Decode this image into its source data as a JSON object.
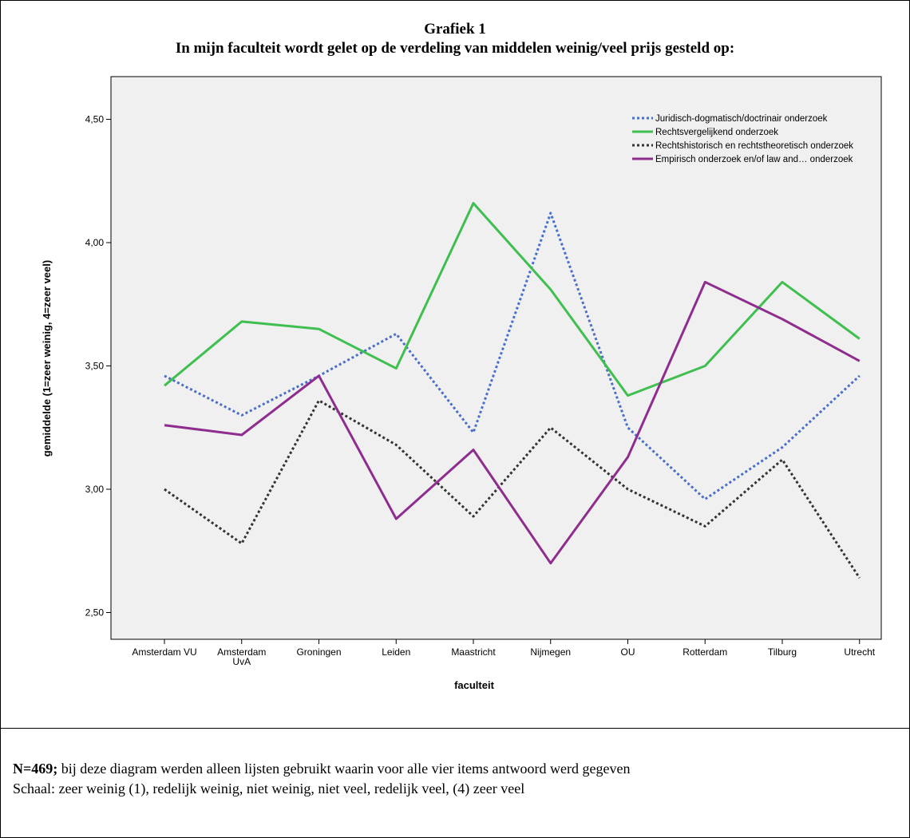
{
  "title": "Grafiek 1",
  "subtitle": "In mijn faculteit wordt gelet op de verdeling van middelen weinig/veel prijs gesteld op:",
  "note": {
    "n_label": "N=469;",
    "line1_rest": " bij deze diagram werden alleen lijsten gebruikt waarin voor alle vier items antwoord werd gegeven",
    "line2": "Schaal: zeer weinig (1), redelijk weinig, niet weinig, niet veel, redelijk veel, (4) zeer veel"
  },
  "chart_data": {
    "type": "line",
    "xlabel": "faculteit",
    "ylabel": "gemiddelde (1=zeer weinig, 4=zeer veel)",
    "ylim": [
      2.4,
      4.65
    ],
    "yticks": [
      2.5,
      3.0,
      3.5,
      4.0,
      4.5
    ],
    "ytick_labels": [
      "2,50",
      "3,00",
      "3,50",
      "4,00",
      "4,50"
    ],
    "categories": [
      "Amsterdam VU",
      "Amsterdam UvA",
      "Groningen",
      "Leiden",
      "Maastricht",
      "Nijmegen",
      "OU",
      "Rotterdam",
      "Tilburg",
      "Utrecht"
    ],
    "category_lines": [
      [
        "Amsterdam VU"
      ],
      [
        "Amsterdam",
        "UvA"
      ],
      [
        "Groningen"
      ],
      [
        "Leiden"
      ],
      [
        "Maastricht"
      ],
      [
        "Nijmegen"
      ],
      [
        "OU"
      ],
      [
        "Rotterdam"
      ],
      [
        "Tilburg"
      ],
      [
        "Utrecht"
      ]
    ],
    "legend_position": "top-right",
    "grid": false,
    "series": [
      {
        "name": "Juridisch-dogmatisch/doctrinair onderzoek",
        "color": "#4a6fc8",
        "style": "dotted",
        "values": [
          3.46,
          3.3,
          3.46,
          3.63,
          3.23,
          4.12,
          3.25,
          2.96,
          3.17,
          3.46
        ]
      },
      {
        "name": "Rechtsvergelijkend onderzoek",
        "color": "#3fbf4f",
        "style": "solid",
        "values": [
          3.42,
          3.68,
          3.65,
          3.49,
          4.16,
          3.81,
          3.38,
          3.5,
          3.84,
          3.61
        ]
      },
      {
        "name": "Rechtshistorisch en rechtstheoretisch onderzoek",
        "color": "#333333",
        "style": "dotted",
        "values": [
          3.0,
          2.78,
          3.36,
          3.18,
          2.89,
          3.25,
          3.0,
          2.85,
          3.12,
          2.64
        ]
      },
      {
        "name": "Empirisch onderzoek en/of law and… onderzoek",
        "color": "#8e2d8e",
        "style": "solid",
        "values": [
          3.26,
          3.22,
          3.46,
          2.88,
          3.16,
          2.7,
          3.13,
          3.84,
          3.69,
          3.52
        ]
      }
    ]
  }
}
